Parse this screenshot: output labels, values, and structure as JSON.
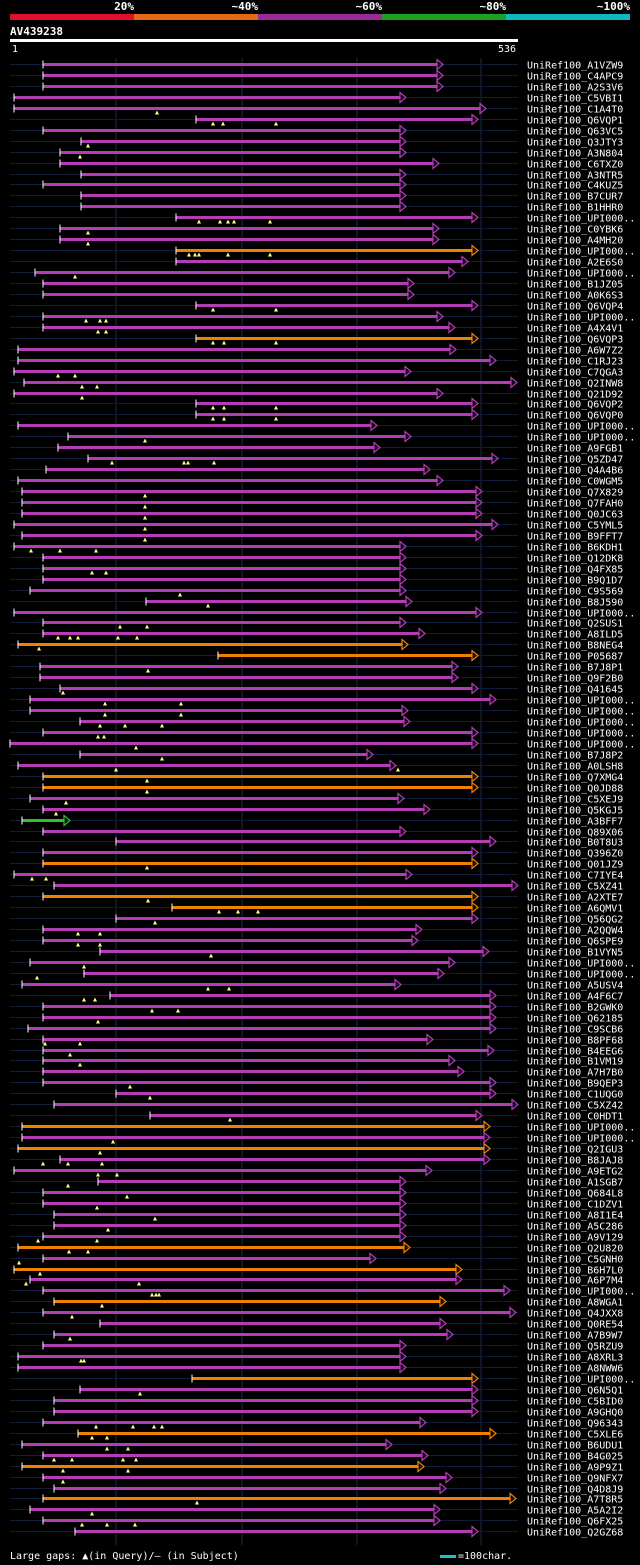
{
  "legend": {
    "segments": [
      {
        "label": "20%",
        "color": "#e0102c"
      },
      {
        "label": "~40%",
        "color": "#e06b10"
      },
      {
        "label": "~60%",
        "color": "#9b2a98"
      },
      {
        "label": "~80%",
        "color": "#20a020"
      },
      {
        "label": "~100%",
        "color": "#10b8c0"
      }
    ]
  },
  "query": {
    "id": "AV439238",
    "start": "1",
    "end": "536"
  },
  "colors": {
    "purple": "#b43cb4",
    "orange": "#f08000",
    "green": "#30c030",
    "mark": "#ffff80",
    "grid": "#1c2a4a"
  },
  "hits": [
    "UniRef100_A1VZW9",
    "UniRef100_C4APC9",
    "UniRef100_A2S3V6",
    "UniRef100_C5VBI1",
    "UniRef100_C1A4T0",
    "UniRef100_Q6VQP1",
    "UniRef100_Q63VC5",
    "UniRef100_Q3JTY3",
    "UniRef100_A3N804",
    "UniRef100_C6TXZ0",
    "UniRef100_A3NTR5",
    "UniRef100_C4KUZ5",
    "UniRef100_B7CUR7",
    "UniRef100_B1HHR0",
    "UniRef100_UPI000..",
    "UniRef100_C0YBK6",
    "UniRef100_A4MH20",
    "UniRef100_UPI000..",
    "UniRef100_A2E6S0",
    "UniRef100_UPI000..",
    "UniRef100_B1JZ05",
    "UniRef100_A0K6S3",
    "UniRef100_Q6VQP4",
    "UniRef100_UPI000..",
    "UniRef100_A4X4V1",
    "UniRef100_Q6VQP3",
    "UniRef100_A6W7Z2",
    "UniRef100_C1RJ23",
    "UniRef100_C7QGA3",
    "UniRef100_Q2INW8",
    "UniRef100_Q21D92",
    "UniRef100_Q6VQP2",
    "UniRef100_Q6VQP0",
    "UniRef100_UPI000..",
    "UniRef100_UPI000..",
    "UniRef100_A9FGB1",
    "UniRef100_Q5ZD47",
    "UniRef100_Q4A4B6",
    "UniRef100_C0WGM5",
    "UniRef100_Q7X829",
    "UniRef100_Q7FAH0",
    "UniRef100_Q0JC63",
    "UniRef100_C5YML5",
    "UniRef100_B9FFT7",
    "UniRef100_B6KDH1",
    "UniRef100_Q12DK8",
    "UniRef100_Q4FX85",
    "UniRef100_B9Q1D7",
    "UniRef100_C9S569",
    "UniRef100_B8J590",
    "UniRef100_UPI000..",
    "UniRef100_Q2SUS1",
    "UniRef100_A8ILD5",
    "UniRef100_B8NEG4",
    "UniRef100_P05687",
    "UniRef100_B7J8P1",
    "UniRef100_Q9F2B0",
    "UniRef100_Q41645",
    "UniRef100_UPI000..",
    "UniRef100_UPI000..",
    "UniRef100_UPI000..",
    "UniRef100_UPI000..",
    "UniRef100_UPI000..",
    "UniRef100_B7J8P2",
    "UniRef100_A0LSH8",
    "UniRef100_Q7XMG4",
    "UniRef100_Q0JD88",
    "UniRef100_C5XEJ9",
    "UniRef100_Q5KGJ5",
    "UniRef100_A3BFF7",
    "UniRef100_Q89X06",
    "UniRef100_B0T8U3",
    "UniRef100_Q396Z0",
    "UniRef100_Q01JZ9",
    "UniRef100_C7IYE4",
    "UniRef100_C5XZ41",
    "UniRef100_A2XTE7",
    "UniRef100_A6QMV1",
    "UniRef100_Q56QG2",
    "UniRef100_A2QQW4",
    "UniRef100_Q6SPE9",
    "UniRef100_B1VYN5",
    "UniRef100_UPI000..",
    "UniRef100_UPI000..",
    "UniRef100_A5USV4",
    "UniRef100_A4F6C7",
    "UniRef100_B2GWK0",
    "UniRef100_Q62185",
    "UniRef100_C9SCB6",
    "UniRef100_B8PF68",
    "UniRef100_B4EEG6",
    "UniRef100_B1VM19",
    "UniRef100_A7H7B0",
    "UniRef100_B9QEP3",
    "UniRef100_C1UQG0",
    "UniRef100_C5XZ42",
    "UniRef100_C0HDT1",
    "UniRef100_UPI000..",
    "UniRef100_UPI000..",
    "UniRef100_Q2IGU3",
    "UniRef100_B8JAJ8",
    "UniRef100_A9ETG2",
    "UniRef100_A1SGB7",
    "UniRef100_Q684L8",
    "UniRef100_C1DZV1",
    "UniRef100_A8I1E4",
    "UniRef100_A5C286",
    "UniRef100_A9V129",
    "UniRef100_Q2U820",
    "UniRef100_C5GNH0",
    "UniRef100_B6H7L0",
    "UniRef100_A6P7M4",
    "UniRef100_UPI000..",
    "UniRef100_A8WGA1",
    "UniRef100_Q4JXX8",
    "UniRef100_Q0RE54",
    "UniRef100_A7B9W7",
    "UniRef100_Q5RZU9",
    "UniRef100_A8XRL3",
    "UniRef100_A8NWW6",
    "UniRef100_UPI000..",
    "UniRef100_Q6N5Q1",
    "UniRef100_C5BID0",
    "UniRef100_A9GHQ0",
    "UniRef100_Q96343",
    "UniRef100_C5XLE6",
    "UniRef100_B6UDU1",
    "UniRef100_B4G025",
    "UniRef100_A9P9Z1",
    "UniRef100_Q9NFX7",
    "UniRef100_Q4D8J9",
    "UniRef100_A7T8R5",
    "UniRef100_A5A2I2",
    "UniRef100_Q6FX25",
    "UniRef100_Q2GZ68"
  ],
  "footer": {
    "gaps_label": "Large gaps: ▲(in Query)/– (in Subject)",
    "scale_label": "=100char."
  }
}
